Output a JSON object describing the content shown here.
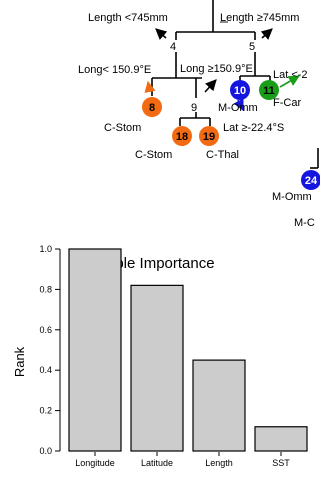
{
  "tree": {
    "splits": [
      {
        "id": "n4",
        "left": "Length <745mm",
        "right": "Length ≥745mm"
      },
      {
        "id": "n9",
        "left": "Long< 150.9°E",
        "right": "Long ≥150.9°E"
      },
      {
        "id": "n10",
        "right": "Lat <-2",
        "down": "Lat ≥-22.4°S"
      }
    ],
    "node_numbers": [
      "4",
      "5",
      "9"
    ],
    "leaves": [
      {
        "num": "8",
        "label": "C-Stom",
        "color": "#f26a12"
      },
      {
        "num": "18",
        "label": "C-Stom",
        "color": "#f26a12"
      },
      {
        "num": "19",
        "label": "C-Thal",
        "color": "#f26a12"
      },
      {
        "num": "10",
        "label": "M-Omm",
        "color": "#1515e0"
      },
      {
        "num": "11",
        "label": "F-Car",
        "color": "#1a9e1a"
      },
      {
        "num": "24",
        "label": "M-Omm",
        "color": "#1515e0"
      },
      {
        "num": "",
        "label": "M-C",
        "color": "#000000"
      }
    ]
  },
  "chart_data": {
    "type": "bar",
    "title": "Variable Importance",
    "xlabel": "",
    "ylabel": "Rank",
    "categories": [
      "Longitude",
      "Latitude",
      "Length",
      "SST"
    ],
    "values": [
      1.0,
      0.82,
      0.45,
      0.12
    ],
    "ylim": [
      0,
      1.0
    ],
    "yticks": [
      "0.0",
      "0.2",
      "0.4",
      "0.6",
      "0.8",
      "1.0"
    ],
    "bar_color": "#cccccc",
    "grid": false
  }
}
